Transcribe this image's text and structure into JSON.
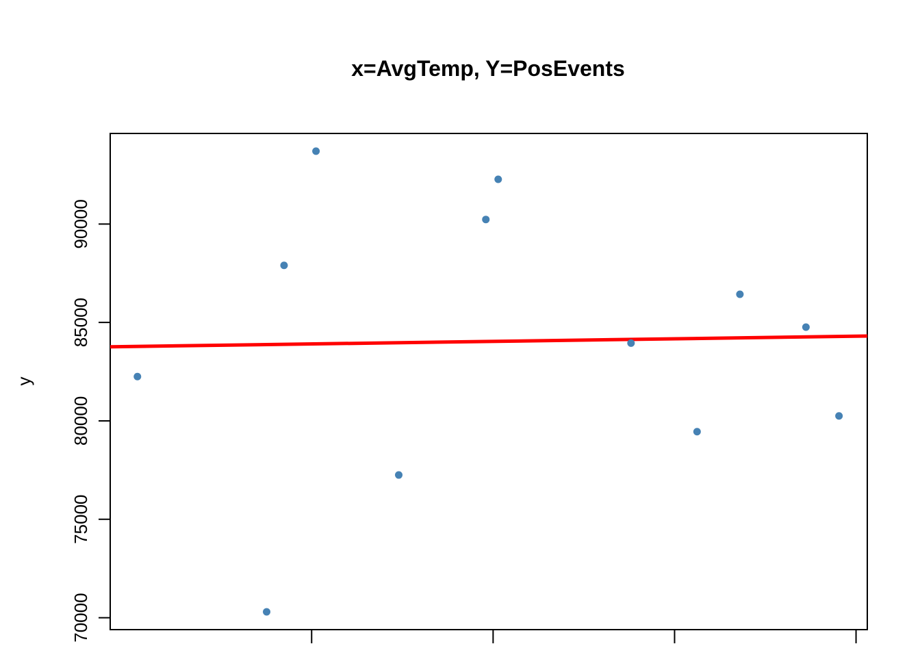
{
  "chart_data": {
    "type": "scatter",
    "title": "x=AvgTemp, Y=PosEvents",
    "xlabel": "",
    "ylabel": "y",
    "xlim": [
      4.45,
      25.31
    ],
    "ylim": [
      69395,
      94600
    ],
    "x_ticks": [],
    "y_ticks": [
      70000,
      75000,
      80000,
      85000,
      90000
    ],
    "y_tick_labels": [
      "70000",
      "75000",
      "80000",
      "85000",
      "90000"
    ],
    "grid": false,
    "legend": "none",
    "colors": {
      "points": "#4682B4",
      "fit_line": "#FF0000"
    },
    "points": [
      {
        "x": 5.2,
        "y": 82250
      },
      {
        "x": 8.76,
        "y": 70300
      },
      {
        "x": 9.24,
        "y": 87900
      },
      {
        "x": 10.12,
        "y": 93700
      },
      {
        "x": 12.4,
        "y": 77250
      },
      {
        "x": 14.8,
        "y": 90230
      },
      {
        "x": 15.14,
        "y": 92270
      },
      {
        "x": 18.8,
        "y": 83950
      },
      {
        "x": 20.62,
        "y": 79450
      },
      {
        "x": 21.8,
        "y": 86430
      },
      {
        "x": 23.62,
        "y": 84760
      },
      {
        "x": 24.53,
        "y": 80250
      }
    ],
    "fit_line": {
      "intercept": 83645,
      "slope": 26.2
    }
  }
}
